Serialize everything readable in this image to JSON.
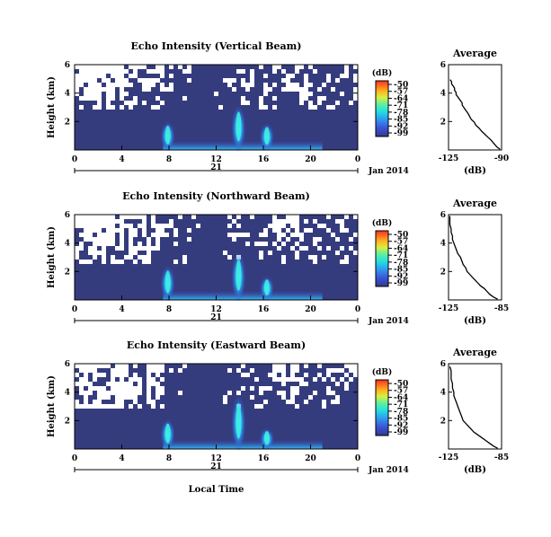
{
  "chart_data": [
    {
      "type": "heatmap",
      "title": "Echo Intensity (Vertical Beam)",
      "ylabel": "Height (km)",
      "xlabel": "",
      "x_ticks": [
        "0",
        "4",
        "8",
        "12",
        "16",
        "20",
        "0"
      ],
      "y_ticks": [
        "6",
        "4",
        "2"
      ],
      "xlim": [
        0,
        24
      ],
      "ylim": [
        0,
        6
      ],
      "date_marker": "21",
      "date_label": "Jan 2014",
      "colorbar": {
        "unit": "(dB)",
        "ticks": [
          "-50",
          "-57",
          "-64",
          "-71",
          "-78",
          "-85",
          "-92",
          "-99"
        ],
        "range": [
          -99,
          -50
        ]
      },
      "features": [
        {
          "hour": 7.9,
          "top_km": 1.9
        },
        {
          "hour": 13.9,
          "top_km": 3.0
        },
        {
          "hour": 16.3,
          "top_km": 1.8
        }
      ],
      "no_data_above_km": 3.0
    },
    {
      "type": "heatmap",
      "title": "Echo Intensity (Northward Beam)",
      "ylabel": "Height (km)",
      "xlabel": "",
      "x_ticks": [
        "0",
        "4",
        "8",
        "12",
        "16",
        "20",
        "0"
      ],
      "y_ticks": [
        "6",
        "4",
        "2"
      ],
      "xlim": [
        0,
        24
      ],
      "ylim": [
        0,
        6
      ],
      "date_marker": "21",
      "date_label": "Jan 2014",
      "colorbar": {
        "unit": "(dB)",
        "ticks": [
          "-50",
          "-57",
          "-64",
          "-71",
          "-78",
          "-85",
          "-92",
          "-99"
        ],
        "range": [
          -99,
          -50
        ]
      },
      "features": [
        {
          "hour": 7.9,
          "top_km": 2.3
        },
        {
          "hour": 13.9,
          "top_km": 3.2
        },
        {
          "hour": 16.3,
          "top_km": 1.6
        }
      ],
      "no_data_above_km": 2.8
    },
    {
      "type": "heatmap",
      "title": "Echo Intensity (Eastward Beam)",
      "ylabel": "Height (km)",
      "xlabel": "Local Time",
      "x_ticks": [
        "0",
        "4",
        "8",
        "12",
        "16",
        "20",
        "0"
      ],
      "y_ticks": [
        "6",
        "4",
        "2"
      ],
      "xlim": [
        0,
        24
      ],
      "ylim": [
        0,
        6
      ],
      "date_marker": "21",
      "date_label": "Jan 2014",
      "colorbar": {
        "unit": "(dB)",
        "ticks": [
          "-50",
          "-57",
          "-64",
          "-71",
          "-78",
          "-85",
          "-92",
          "-99"
        ],
        "range": [
          -99,
          -50
        ]
      },
      "features": [
        {
          "hour": 7.9,
          "top_km": 2.0
        },
        {
          "hour": 13.9,
          "top_km": 3.6
        },
        {
          "hour": 16.3,
          "top_km": 1.4
        }
      ],
      "no_data_above_km": 3.0
    },
    {
      "type": "line",
      "title": "Average",
      "xlabel": "(dB)",
      "ylabel": "",
      "xlim": [
        -125,
        -90
      ],
      "ylim": [
        0,
        6
      ],
      "x_ticks": [
        "-125",
        "-90"
      ],
      "y_ticks": [
        "6",
        "4",
        "2"
      ],
      "series": [
        {
          "x": [
            -91,
            -93,
            -95,
            -97,
            -99,
            -101,
            -103,
            -105,
            -107,
            -108,
            -110,
            -111,
            -112,
            -113,
            -114,
            -115,
            -116,
            -116,
            -117,
            -118,
            -119,
            -120,
            -120,
            -121,
            -121,
            -122,
            -123,
            -123,
            -124
          ],
          "y": [
            0.05,
            0.2,
            0.45,
            0.7,
            0.9,
            1.1,
            1.3,
            1.55,
            1.75,
            1.95,
            2.15,
            2.35,
            2.55,
            2.7,
            2.85,
            3.0,
            3.15,
            3.3,
            3.45,
            3.6,
            3.75,
            3.9,
            4.05,
            4.2,
            4.35,
            4.5,
            4.65,
            4.8,
            4.95
          ]
        }
      ]
    },
    {
      "type": "line",
      "title": "Average",
      "xlabel": "(dB)",
      "ylabel": "",
      "xlim": [
        -125,
        -85
      ],
      "ylim": [
        0,
        6
      ],
      "x_ticks": [
        "-125",
        "-85"
      ],
      "y_ticks": [
        "6",
        "4",
        "2"
      ],
      "series": [
        {
          "x": [
            -88,
            -91,
            -94,
            -96,
            -98,
            -101,
            -103,
            -105,
            -107,
            -109,
            -111,
            -112,
            -114,
            -115,
            -116,
            -118,
            -119,
            -120,
            -121,
            -122,
            -122,
            -123,
            -123,
            -124,
            -124,
            -124
          ],
          "y": [
            0.05,
            0.2,
            0.4,
            0.6,
            0.8,
            1.0,
            1.2,
            1.4,
            1.6,
            1.8,
            2.0,
            2.25,
            2.5,
            2.75,
            3.0,
            3.25,
            3.5,
            3.75,
            4.0,
            4.25,
            4.5,
            4.75,
            5.0,
            5.3,
            5.6,
            5.9
          ]
        }
      ]
    },
    {
      "type": "line",
      "title": "Average",
      "xlabel": "(dB)",
      "ylabel": "",
      "xlim": [
        -125,
        -85
      ],
      "ylim": [
        0,
        6
      ],
      "x_ticks": [
        "-125",
        "-85"
      ],
      "y_ticks": [
        "6",
        "4",
        "2"
      ],
      "series": [
        {
          "x": [
            -88,
            -91,
            -94,
            -97,
            -100,
            -103,
            -106,
            -108,
            -110,
            -112,
            -114,
            -115,
            -116,
            -117,
            -118,
            -119,
            -120,
            -121,
            -121,
            -122,
            -122,
            -123,
            -123,
            -123,
            -124
          ],
          "y": [
            0.05,
            0.2,
            0.4,
            0.6,
            0.8,
            1.0,
            1.2,
            1.4,
            1.6,
            1.8,
            2.0,
            2.25,
            2.5,
            2.75,
            3.0,
            3.25,
            3.5,
            3.75,
            4.0,
            4.3,
            4.6,
            4.9,
            5.2,
            5.5,
            5.8
          ]
        }
      ]
    }
  ]
}
